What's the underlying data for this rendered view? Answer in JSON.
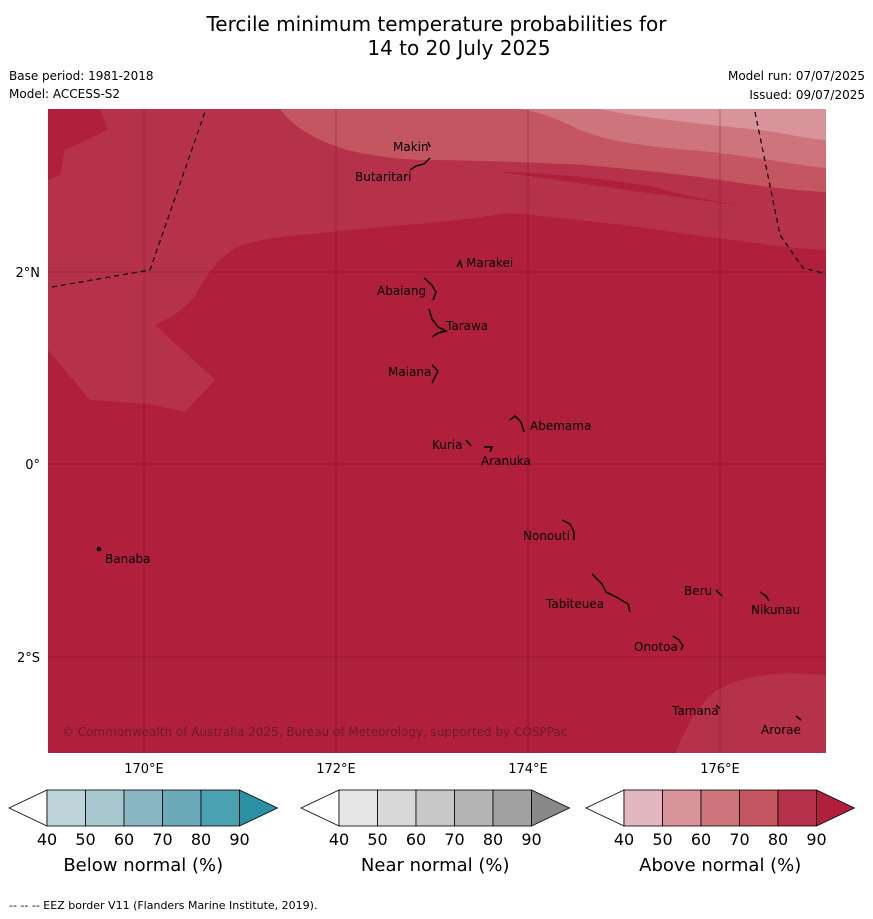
{
  "title": {
    "line1": "Tercile minimum temperature probabilities for",
    "line2": "14 to 20 July 2025"
  },
  "meta": {
    "base_period": "Base period: 1981-2018",
    "model": "Model: ACCESS-S2",
    "model_run": "Model run: 07/07/2025",
    "issued": "Issued: 09/07/2025"
  },
  "axes": {
    "lat_ticks": [
      "2°N",
      "0°",
      "2°S"
    ],
    "lon_ticks": [
      "170°E",
      "172°E",
      "174°E",
      "176°E"
    ]
  },
  "places": {
    "makin": "Makin",
    "butaritari": "Butaritari",
    "marakei": "Marakei",
    "abaiang": "Abaiang",
    "tarawa": "Tarawa",
    "maiana": "Maiana",
    "abemama": "Abemama",
    "kuria": "Kuria",
    "aranuka": "Aranuka",
    "nonouti": "Nonouti",
    "banaba": "Banaba",
    "beru": "Beru",
    "tabiteuea": "Tabiteuea",
    "nikunau": "Nikunau",
    "onotoa": "Onotoa",
    "tamana": "Tamana",
    "arorae": "Arorae"
  },
  "copyright": "© Commonwealth of Australia 2025, Bureau of Meteorology, supported by COSPPac",
  "colorbars": [
    {
      "title": "Below normal (%)",
      "ticks": [
        "40",
        "50",
        "60",
        "70",
        "80",
        "90"
      ],
      "colors": [
        "#ffffff",
        "#bfd3da",
        "#a8c7cf",
        "#8ab7c4",
        "#6aaab9",
        "#4aa1b1",
        "#2a90a4"
      ]
    },
    {
      "title": "Near normal (%)",
      "ticks": [
        "40",
        "50",
        "60",
        "70",
        "80",
        "90"
      ],
      "colors": [
        "#ffffff",
        "#e6e6e6",
        "#d8d8d8",
        "#c8c8c8",
        "#b4b4b4",
        "#a0a0a0",
        "#888888"
      ]
    },
    {
      "title": "Above normal (%)",
      "ticks": [
        "40",
        "50",
        "60",
        "70",
        "80",
        "90"
      ],
      "colors": [
        "#ffffff",
        "#e2b8be",
        "#d9939b",
        "#cd747c",
        "#c35661",
        "#b6324a",
        "#b01f3c"
      ]
    }
  ],
  "footer": "--  --  -- EEZ border V11 (Flanders Marine Institute, 2019).",
  "colors": {
    "above_90": "#b01f3c",
    "above_80": "#b6324a",
    "above_70": "#c35661",
    "above_60": "#cd747c",
    "above_50": "#d9939b"
  }
}
